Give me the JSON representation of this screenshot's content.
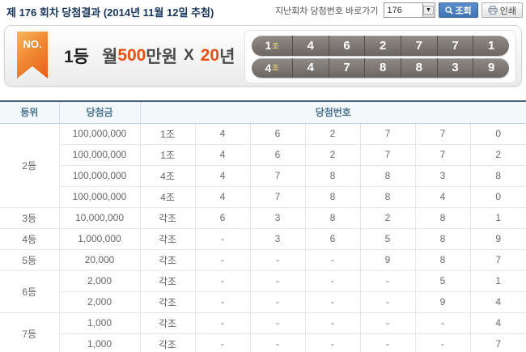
{
  "page": {
    "title": "제 176 회차 당첨결과 (2014년 11월 12일 추첨)"
  },
  "controls": {
    "goto_label": "지난회차 당첨번호 바로가기",
    "round_value": "176",
    "search_label": "조회",
    "print_label": "인쇄"
  },
  "first_prize": {
    "ribbon": "NO.",
    "rank": "1등",
    "prize_prefix": "월",
    "prize_amount": "500",
    "prize_suffix": "만원",
    "times": "X",
    "years_value": "20",
    "years_suffix": "년",
    "numbers": [
      {
        "group": "1",
        "group_suffix": "조",
        "digits": [
          "4",
          "6",
          "2",
          "7",
          "7",
          "1"
        ]
      },
      {
        "group": "4",
        "group_suffix": "조",
        "digits": [
          "4",
          "7",
          "8",
          "8",
          "3",
          "9"
        ]
      }
    ]
  },
  "table": {
    "headers": {
      "rank": "등위",
      "prize": "당첨금",
      "numbers": "당첨번호"
    },
    "groups": [
      {
        "rank": "2등",
        "rows": [
          {
            "prize": "100,000,000",
            "jo": "1조",
            "digits": [
              "4",
              "6",
              "2",
              "7",
              "7",
              "0"
            ]
          },
          {
            "prize": "100,000,000",
            "jo": "1조",
            "digits": [
              "4",
              "6",
              "2",
              "7",
              "7",
              "2"
            ]
          },
          {
            "prize": "100,000,000",
            "jo": "4조",
            "digits": [
              "4",
              "7",
              "8",
              "8",
              "3",
              "8"
            ]
          },
          {
            "prize": "100,000,000",
            "jo": "4조",
            "digits": [
              "4",
              "7",
              "8",
              "8",
              "4",
              "0"
            ]
          }
        ]
      },
      {
        "rank": "3등",
        "rows": [
          {
            "prize": "10,000,000",
            "jo": "각조",
            "digits": [
              "6",
              "3",
              "8",
              "2",
              "8",
              "1"
            ]
          }
        ]
      },
      {
        "rank": "4등",
        "rows": [
          {
            "prize": "1,000,000",
            "jo": "각조",
            "digits": [
              "-",
              "3",
              "6",
              "5",
              "8",
              "9"
            ]
          }
        ]
      },
      {
        "rank": "5등",
        "rows": [
          {
            "prize": "20,000",
            "jo": "각조",
            "digits": [
              "-",
              "-",
              "-",
              "9",
              "8",
              "7"
            ]
          }
        ]
      },
      {
        "rank": "6등",
        "rows": [
          {
            "prize": "2,000",
            "jo": "각조",
            "digits": [
              "-",
              "-",
              "-",
              "-",
              "5",
              "1"
            ]
          },
          {
            "prize": "2,000",
            "jo": "각조",
            "digits": [
              "-",
              "-",
              "-",
              "-",
              "9",
              "4"
            ]
          }
        ]
      },
      {
        "rank": "7등",
        "rows": [
          {
            "prize": "1,000",
            "jo": "각조",
            "digits": [
              "-",
              "-",
              "-",
              "-",
              "-",
              "4"
            ]
          },
          {
            "prize": "1,000",
            "jo": "각조",
            "digits": [
              "-",
              "-",
              "-",
              "-",
              "-",
              "7"
            ]
          }
        ]
      }
    ]
  },
  "colors": {
    "accent_red": "#e8500f",
    "title_navy": "#17355c",
    "search_button_blue": "#4a7fbf",
    "bar_gray": "#7b7672",
    "jo_gold": "#ddc97a",
    "table_header_text": "#4a7391",
    "table_top_border": "#42607a"
  }
}
